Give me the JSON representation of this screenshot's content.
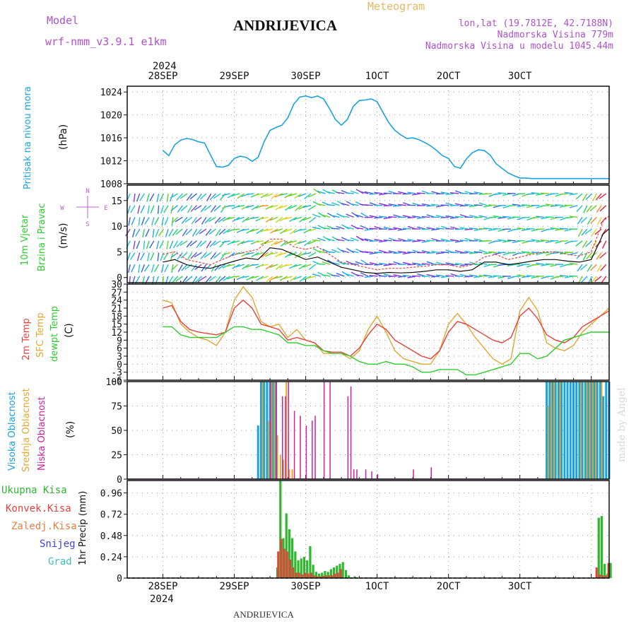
{
  "header": {
    "model_label": "Model",
    "model_name": "wrf-nmm_v3.9.1 e1km",
    "station_title": "ANDRIJEVICA",
    "meteogram_label": "Meteogram",
    "lonlat": "lon,lat (19.7812E, 42.7188N)",
    "elevation": "Nadmorska Visina 779m",
    "model_elevation": "Nadmorska Visina u modelu 1045.44m"
  },
  "footer": {
    "station": "ANDRIJEVICA",
    "credit": "made by Angel"
  },
  "time_axis": {
    "labels": [
      "28SEP",
      "29SEP",
      "30SEP",
      "1OCT",
      "2OCT",
      "3OCT"
    ],
    "year": "2024"
  },
  "colors": {
    "pressure": "#1aa3e0",
    "temp": "#e8413c",
    "sfc": "#e0a830",
    "dewpt": "#2ecc2e",
    "high_cloud": "#1aa3e0",
    "mid_cloud": "#e0a830",
    "low_cloud": "#d020a0",
    "precip_total": "#2eb82e",
    "precip_conv": "#e8413c",
    "snow": "#4040e0",
    "graupel": "#40c0c0"
  },
  "chart_data": [
    {
      "type": "line",
      "panel": "pressure",
      "ylabel": "Pritisak na nivou mora",
      "unit": "(hPa)",
      "yticks": [
        1008,
        1012,
        1016,
        1020,
        1024
      ],
      "ylim": [
        1008,
        1025
      ],
      "series": [
        {
          "name": "Pritisak na nivou mora",
          "t": [
            0,
            2,
            4,
            6,
            8,
            10,
            12,
            14,
            16,
            18,
            20,
            22,
            24,
            26,
            28,
            30,
            32,
            34,
            36,
            38,
            40,
            42,
            44,
            46,
            48,
            50,
            52,
            54,
            56,
            58,
            60,
            62,
            64,
            66,
            68,
            70,
            72,
            74,
            76,
            78,
            80,
            82,
            84,
            86,
            88,
            90,
            92,
            94,
            96,
            98,
            100,
            102,
            104,
            106,
            108,
            110,
            112,
            114,
            116,
            118,
            120,
            122,
            124,
            126,
            128,
            130,
            132,
            134,
            136,
            138,
            140,
            142,
            144,
            146,
            148,
            150
          ],
          "values": [
            1013.8,
            1012.9,
            1014.8,
            1015.6,
            1015.9,
            1015.7,
            1015.3,
            1015.1,
            1013.0,
            1011.0,
            1010.9,
            1011.2,
            1012.4,
            1012.8,
            1012.6,
            1011.9,
            1012.6,
            1015.3,
            1017.3,
            1017.8,
            1018.2,
            1019.5,
            1021.9,
            1023.1,
            1023.3,
            1023.0,
            1023.3,
            1022.8,
            1021.1,
            1019.2,
            1018.2,
            1019.2,
            1021.5,
            1022.5,
            1022.6,
            1022.8,
            1022.3,
            1020.4,
            1018.6,
            1017.3,
            1016.5,
            1015.9,
            1016.0,
            1015.7,
            1015.2,
            1014.6,
            1013.8,
            1012.9,
            1012.4,
            1011.0,
            1010.7,
            1012.3,
            1013.4,
            1013.9,
            1013.8,
            1013.0,
            1011.5,
            1010.7,
            1009.9,
            1009.4,
            1009.0,
            1009.0,
            1008.9,
            1008.9,
            1008.9,
            1008.9,
            1008.9,
            1008.9,
            1008.9,
            1008.9,
            1008.9,
            1008.9,
            1008.9,
            1008.9,
            1008.9,
            1008.9
          ]
        }
      ]
    },
    {
      "type": "line",
      "panel": "wind",
      "ylabel": "10m Vjetar Brzina i Pravac",
      "unit": "(m/s)",
      "compass": "N, E, S, W",
      "yticks": [
        0,
        5,
        10,
        15
      ],
      "ylim": [
        -1,
        18
      ],
      "series": [
        {
          "name": "speed",
          "t": [
            0,
            4,
            8,
            12,
            16,
            20,
            24,
            28,
            32,
            36,
            40,
            44,
            48,
            52,
            56,
            60,
            64,
            68,
            72,
            76,
            80,
            84,
            88,
            92,
            96,
            100,
            104,
            108,
            112,
            116,
            120,
            124,
            128,
            132,
            136,
            140,
            144,
            148,
            150
          ],
          "values": [
            3.0,
            3.5,
            2.5,
            2.0,
            1.8,
            2.5,
            3.2,
            3.8,
            3.5,
            5.8,
            5.5,
            4.5,
            3.5,
            4.0,
            3.0,
            2.0,
            1.5,
            1.0,
            0.8,
            1.0,
            0.9,
            1.0,
            1.2,
            1.5,
            1.5,
            1.2,
            1.5,
            3.0,
            3.0,
            2.5,
            2.8,
            3.2,
            3.5,
            3.5,
            3.2,
            3.0,
            3.5,
            8.5,
            9.5
          ]
        },
        {
          "name": "gust",
          "t": [
            0,
            4,
            8,
            12,
            16,
            20,
            24,
            28,
            32,
            36,
            40,
            44,
            48,
            52,
            56,
            60,
            64,
            68,
            72,
            76,
            80,
            84,
            88,
            92,
            96,
            100,
            104,
            108,
            112,
            116,
            120,
            124,
            128,
            132,
            136,
            140,
            144,
            148,
            150
          ],
          "values": [
            4.5,
            5.0,
            3.5,
            3.0,
            2.5,
            3.5,
            4.5,
            5.0,
            5.5,
            7.5,
            7.5,
            6.0,
            5.5,
            6.0,
            4.5,
            3.0,
            2.5,
            2.0,
            1.5,
            1.8,
            1.8,
            2.0,
            2.2,
            2.5,
            2.5,
            2.0,
            2.5,
            4.0,
            4.5,
            3.5,
            4.0,
            4.5,
            5.0,
            5.0,
            4.5,
            4.2,
            5.0,
            11.0,
            12.0
          ]
        }
      ]
    },
    {
      "type": "line",
      "panel": "temperature",
      "unit": "(C)",
      "yticks": [
        -6,
        -3,
        0,
        3,
        6,
        9,
        12,
        15,
        18,
        21,
        24,
        27,
        30
      ],
      "ylim": [
        -6,
        30
      ],
      "series": [
        {
          "name": "2m Temp",
          "t": [
            0,
            3,
            6,
            9,
            12,
            15,
            18,
            21,
            24,
            27,
            30,
            33,
            36,
            39,
            42,
            45,
            48,
            51,
            54,
            57,
            60,
            63,
            66,
            69,
            72,
            75,
            78,
            81,
            84,
            87,
            90,
            93,
            96,
            99,
            102,
            105,
            108,
            111,
            114,
            117,
            120,
            123,
            126,
            129,
            132,
            135,
            138,
            141,
            144,
            147,
            150
          ],
          "values": [
            21,
            22,
            16,
            13,
            12,
            11.5,
            11,
            12,
            21,
            24,
            21,
            15,
            14,
            13,
            9,
            10,
            9,
            8,
            5,
            4.5,
            4.5,
            3,
            6,
            11,
            15,
            13,
            9,
            7,
            5,
            3,
            2,
            5,
            12,
            16,
            15,
            13,
            11,
            9,
            8,
            10,
            18,
            21,
            17,
            11,
            9,
            8,
            10,
            14,
            16,
            18,
            20
          ]
        },
        {
          "name": "SFC Temp",
          "t": [
            0,
            3,
            6,
            9,
            12,
            15,
            18,
            21,
            24,
            27,
            30,
            33,
            36,
            39,
            42,
            45,
            48,
            51,
            54,
            57,
            60,
            63,
            66,
            69,
            72,
            75,
            78,
            81,
            84,
            87,
            90,
            93,
            96,
            99,
            102,
            105,
            108,
            111,
            114,
            117,
            120,
            123,
            126,
            129,
            132,
            135,
            138,
            141,
            144,
            147,
            150
          ],
          "values": [
            24,
            23,
            15,
            12,
            10,
            9,
            7,
            12,
            24,
            29,
            25,
            16,
            14,
            15,
            10,
            13,
            9,
            8,
            4,
            4,
            4,
            2,
            5,
            13,
            18,
            12,
            5,
            2,
            1,
            0,
            0,
            5,
            15,
            19,
            15,
            10,
            6,
            2,
            0,
            2,
            20,
            25,
            20,
            8,
            6,
            5,
            7,
            12,
            15,
            18,
            21
          ]
        },
        {
          "name": "dewpt Temp",
          "t": [
            0,
            3,
            6,
            9,
            12,
            15,
            18,
            21,
            24,
            27,
            30,
            33,
            36,
            39,
            42,
            45,
            48,
            51,
            54,
            57,
            60,
            63,
            66,
            69,
            72,
            75,
            78,
            81,
            84,
            87,
            90,
            93,
            96,
            99,
            102,
            105,
            108,
            111,
            114,
            117,
            120,
            123,
            126,
            129,
            132,
            135,
            138,
            141,
            144,
            147,
            150
          ],
          "values": [
            14,
            14,
            11,
            10,
            10,
            10,
            10,
            12,
            14,
            14,
            13,
            13,
            12,
            11,
            8,
            8,
            7,
            7,
            5,
            4,
            4,
            3,
            1,
            0,
            0,
            1,
            0,
            0,
            -1,
            -3,
            -3,
            -2,
            -2,
            -2,
            -4,
            -4,
            -3,
            -2,
            -1,
            0,
            4,
            4,
            2,
            3,
            6,
            9,
            10,
            11,
            12,
            12,
            12
          ]
        }
      ]
    },
    {
      "type": "bar",
      "panel": "clouds",
      "unit": "(%)",
      "yticks": [
        0,
        25,
        50,
        75,
        100
      ],
      "ylim": [
        0,
        100
      ],
      "series": [
        {
          "name": "Visoka Oblacnost",
          "t": [
            32,
            33,
            34,
            35,
            36,
            37,
            38,
            129,
            130,
            131,
            132,
            133,
            134,
            135,
            136,
            137,
            138,
            139,
            140,
            141,
            142,
            143,
            144,
            145,
            146,
            147,
            148,
            149,
            150
          ],
          "values": [
            55,
            100,
            100,
            100,
            100,
            100,
            100,
            100,
            100,
            100,
            100,
            100,
            100,
            100,
            100,
            100,
            100,
            100,
            100,
            100,
            100,
            100,
            100,
            100,
            100,
            100,
            85,
            100,
            100
          ]
        },
        {
          "name": "Srednja Oblacnost",
          "t": [
            33,
            35,
            36,
            37,
            38,
            39,
            40,
            41,
            42,
            43,
            129,
            130,
            131,
            133,
            140,
            142,
            143,
            144,
            145,
            147
          ],
          "values": [
            100,
            60,
            100,
            100,
            45,
            25,
            20,
            100,
            10,
            10,
            75,
            100,
            100,
            100,
            100,
            100,
            100,
            100,
            100,
            100
          ]
        },
        {
          "name": "Niska Oblacnost",
          "t": [
            36,
            38,
            40,
            41,
            42,
            44,
            46,
            48,
            50,
            51,
            54,
            56,
            62,
            63,
            64,
            65,
            68,
            70,
            72,
            84,
            90
          ],
          "values": [
            100,
            100,
            85,
            85,
            100,
            70,
            65,
            55,
            60,
            65,
            100,
            100,
            85,
            95,
            10,
            10,
            10,
            8,
            5,
            10,
            12
          ]
        }
      ]
    },
    {
      "type": "bar",
      "panel": "precip",
      "ylabel": "1hr Precip (mm)",
      "yticks": [
        0,
        0.24,
        0.48,
        0.72,
        0.96
      ],
      "ylim": [
        0,
        1.1
      ],
      "legend": [
        "Ukupna Kisa",
        "Konvek.Kisa",
        "Zaledj.Kisa",
        "Snijeg",
        "Grad"
      ],
      "series": [
        {
          "name": "Ukupna Kisa",
          "t": [
            38,
            39,
            40,
            41,
            42,
            43,
            44,
            45,
            46,
            47,
            48,
            49,
            50,
            51,
            52,
            53,
            54,
            55,
            56,
            57,
            58,
            59,
            60,
            61,
            62,
            64,
            146,
            147,
            148,
            149,
            150
          ],
          "values": [
            0.12,
            1.1,
            0.45,
            0.73,
            0.55,
            0.45,
            0.3,
            0.2,
            0.22,
            0.24,
            0.2,
            0.36,
            0.15,
            0.07,
            0.05,
            0.06,
            0.08,
            0.07,
            0.1,
            0.12,
            0.14,
            0.16,
            0.18,
            0.09,
            0.03,
            0.02,
            0.68,
            0.7,
            0.16,
            0.05,
            0.17
          ]
        },
        {
          "name": "Konvek.Kisa",
          "t": [
            39,
            40,
            41,
            42,
            43,
            44,
            45,
            46,
            47,
            48,
            49,
            50,
            51,
            52,
            53,
            54,
            55,
            56,
            57,
            58,
            59,
            60,
            146,
            147,
            148,
            149,
            150
          ],
          "values": [
            0.3,
            0.44,
            0.33,
            0.3,
            0.21,
            0.12,
            0.06,
            0.06,
            0.04,
            0.06,
            0.05,
            0.06,
            0.03,
            0.02,
            0.02,
            0.02,
            0.03,
            0.03,
            0.03,
            0.05,
            0.06,
            0.1,
            0.12,
            0.04,
            0.03,
            0.03,
            0.17
          ]
        }
      ]
    }
  ]
}
